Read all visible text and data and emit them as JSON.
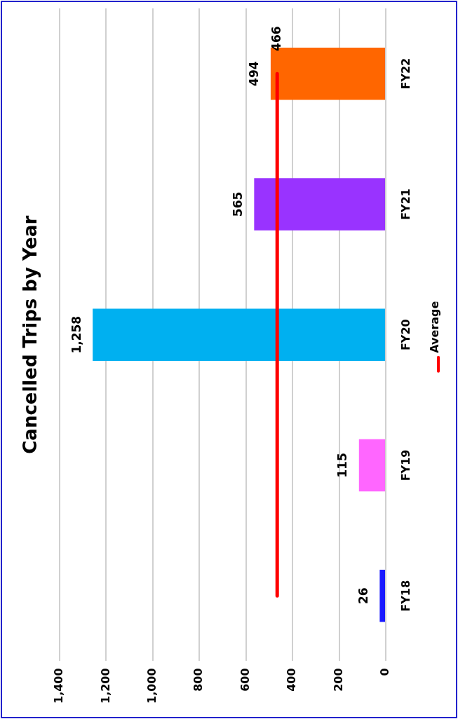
{
  "chart_data": {
    "type": "bar",
    "orientation": "horizontal",
    "title": "Cancelled Trips by Year",
    "categories": [
      "FY22",
      "FY21",
      "FY20",
      "FY19",
      "FY18"
    ],
    "series": [
      {
        "colors": [
          "#ff6600",
          "#9933ff",
          "#00b0f0",
          "#ff66ff",
          "#1a1aff"
        ],
        "values": [
          494,
          565,
          1258,
          115,
          26
        ],
        "value_labels": [
          "494",
          "565",
          "1,258",
          "115",
          "26"
        ]
      },
      {
        "type": "line",
        "name": "Average",
        "color": "#ff0000",
        "values": [
          466,
          466,
          466,
          466,
          466
        ],
        "value_labels": [
          "466",
          null,
          null,
          null,
          null
        ]
      }
    ],
    "xlim": [
      1400,
      0
    ],
    "xticks": [
      0,
      200,
      400,
      600,
      800,
      {
        "value": 1000,
        "label": "1,000"
      },
      {
        "value": 1200,
        "label": "1,200"
      },
      {
        "value": 1400,
        "label": "1,400"
      }
    ],
    "grid": "x",
    "legend": "right",
    "marker": "none",
    "line_style": "solid"
  }
}
